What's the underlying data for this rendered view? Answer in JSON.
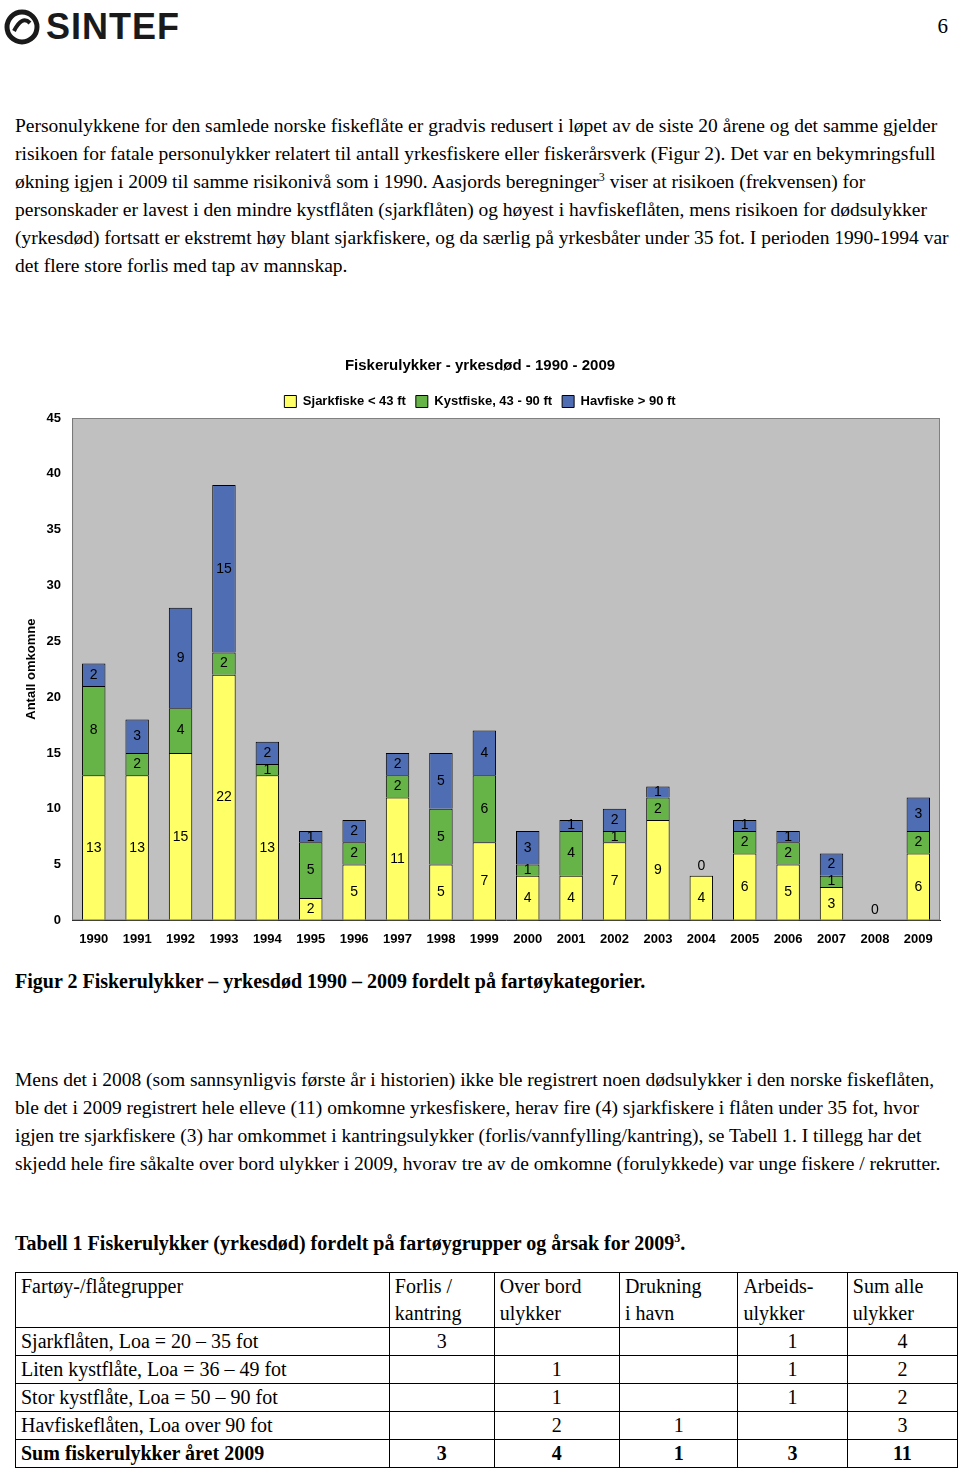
{
  "header": {
    "logo": "SINTEF",
    "page": "6"
  },
  "paragraph_1": {
    "before": "Personulykkene for den samlede norske fiskeflåte er gradvis redusert i løpet av de siste 20 årene og det samme gjelder risikoen for fatale personulykker relatert til antall yrkesfiskere eller fiskerårsverk (Figur 2). Det var en bekymringsfull økning igjen i 2009 til samme risikonivå som i 1990. Aasjords beregninger",
    "sup": "3",
    "after": " viser at risikoen (frekvensen) for personskader er lavest i den mindre kystflåten (sjarkflåten) og høyest i havfiskeflåten, mens risikoen for dødsulykker (yrkesdød) fortsatt er ekstremt høy blant sjarkfiskere, og da særlig på yrkesbåter under 35 fot. I perioden 1990-1994 var det flere store forlis med tap av mannskap."
  },
  "chart_data": {
    "type": "bar",
    "stacked": true,
    "title": "Fiskerulykker - yrkesdød - 1990 - 2009",
    "y_label": "Antall omkomne",
    "categories": [
      "1990",
      "1991",
      "1992",
      "1993",
      "1994",
      "1995",
      "1996",
      "1997",
      "1998",
      "1999",
      "2000",
      "2001",
      "2002",
      "2003",
      "2004",
      "2005",
      "2006",
      "2007",
      "2008",
      "2009"
    ],
    "series": [
      {
        "name": "Sjarkfiske < 43 ft",
        "color": "#ffff66",
        "values": [
          13,
          13,
          15,
          22,
          13,
          2,
          5,
          11,
          5,
          7,
          4,
          4,
          7,
          9,
          4,
          6,
          5,
          3,
          0,
          6
        ]
      },
      {
        "name": "Kystfiske, 43 - 90 ft",
        "color": "#66b347",
        "values": [
          8,
          2,
          4,
          2,
          1,
          5,
          2,
          2,
          5,
          6,
          1,
          4,
          1,
          2,
          0,
          2,
          2,
          1,
          null,
          2
        ]
      },
      {
        "name": "Havfiske > 90 ft",
        "color": "#4f6db3",
        "values": [
          2,
          3,
          9,
          15,
          2,
          1,
          2,
          2,
          5,
          4,
          3,
          1,
          2,
          1,
          null,
          1,
          1,
          2,
          null,
          3
        ]
      }
    ],
    "ylim": [
      0,
      45
    ],
    "yticks": [
      0,
      5,
      10,
      15,
      20,
      25,
      30,
      35,
      40,
      45
    ],
    "grid": false,
    "legend": "top",
    "data_labels": true
  },
  "caption": "Figur 2 Fiskerulykker – yrkesdød 1990 – 2009 fordelt på fartøykategorier.",
  "paragraph_2": "Mens det i 2008 (som sannsynligvis første år i historien) ikke ble registrert noen dødsulykker i den norske fiskeflåten, ble det i 2009 registrert hele elleve (11) omkomne yrkesfiskere, herav fire (4) sjarkfiskere i flåten under 35 fot, hvor igjen tre sjarkfiskere (3) har omkommet i kantringsulykker (forlis/vannfylling/kantring), se Tabell 1. I tillegg har det skjedd hele fire såkalte over bord ulykker i 2009, hvorav tre av de omkomne (forulykkede) var unge fiskere / rekrutter.",
  "table_title": {
    "before": "Tabell 1 Fiskerulykker (yrkesdød) fordelt på fartøygrupper og årsak for 2009",
    "sup": "3",
    "after": "."
  },
  "table": {
    "header": [
      "Fartøy-/flåtegrupper",
      "Forlis /\nkantring",
      "Over bord\nulykker",
      "Drukning\ni havn",
      "Arbeids-\nulykker",
      "Sum alle\nulykker"
    ],
    "rows": [
      [
        "Sjarkflåten, Loa = 20 – 35 fot",
        3,
        null,
        null,
        1,
        4
      ],
      [
        "Liten kystflåte, Loa = 36 – 49 fot",
        null,
        1,
        null,
        1,
        2
      ],
      [
        "Stor kystflåte, Loa = 50 – 90 fot",
        null,
        1,
        null,
        1,
        2
      ],
      [
        "Havfiskeflåten, Loa over 90 fot",
        null,
        2,
        1,
        null,
        3
      ]
    ],
    "sum_row": [
      "Sum fiskerulykker året 2009",
      3,
      4,
      1,
      3,
      11
    ]
  }
}
